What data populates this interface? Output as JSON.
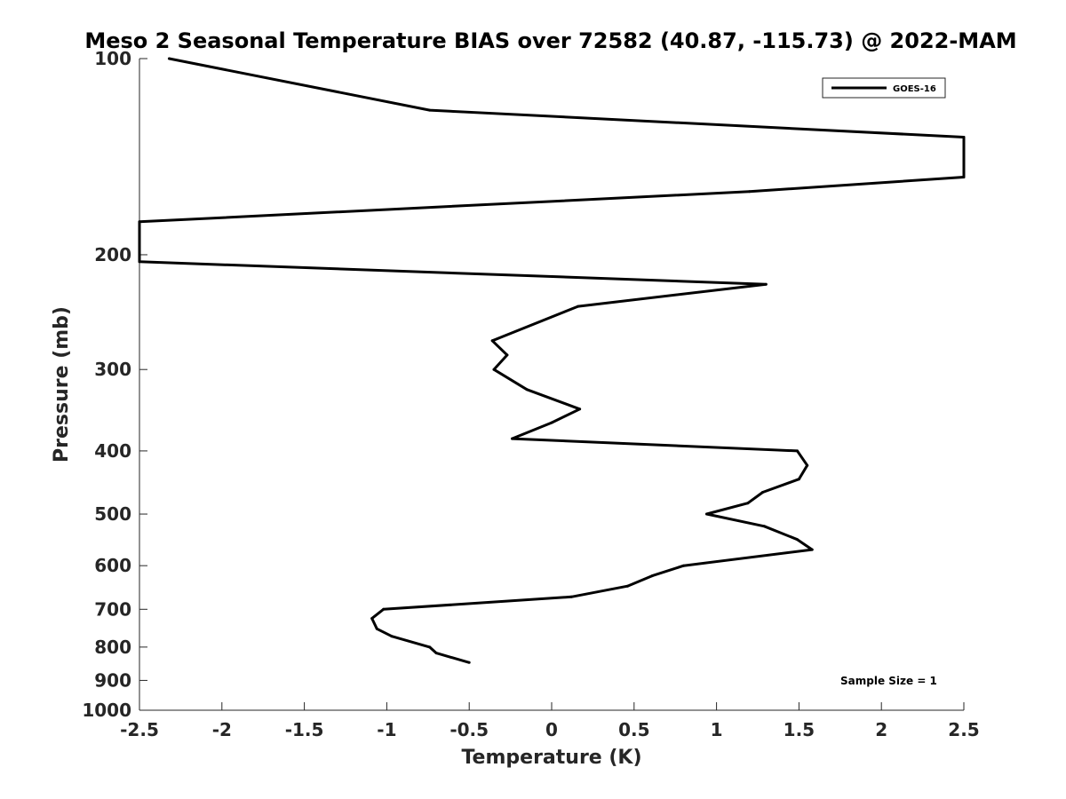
{
  "chart_data": {
    "type": "line",
    "title": "Meso 2 Seasonal Temperature BIAS over 72582 (40.87, -115.73) @ 2022-MAM",
    "xlabel": "Temperature (K)",
    "ylabel": "Pressure (mb)",
    "xlim": [
      -2.5,
      2.5
    ],
    "ylim": [
      100,
      1000
    ],
    "y_scale": "log",
    "y_reversed": true,
    "x_ticks": [
      "-2.5",
      "-2",
      "-1.5",
      "-1",
      "-0.5",
      "0",
      "0.5",
      "1",
      "1.5",
      "2",
      "2.5"
    ],
    "y_ticks": [
      "100",
      "200",
      "300",
      "400",
      "500",
      "600",
      "700",
      "800",
      "900",
      "1000"
    ],
    "legend": {
      "position": "top-right",
      "entries": [
        "GOES-16"
      ]
    },
    "annotation": "Sample Size = 1",
    "series": [
      {
        "name": "GOES-16",
        "color": "#000000",
        "points": [
          {
            "x": -2.32,
            "y": 100
          },
          {
            "x": -0.74,
            "y": 120
          },
          {
            "x": 2.5,
            "y": 132
          },
          {
            "x": 2.5,
            "y": 152
          },
          {
            "x": 1.2,
            "y": 160
          },
          {
            "x": -2.5,
            "y": 178
          },
          {
            "x": -2.5,
            "y": 205
          },
          {
            "x": 1.3,
            "y": 222
          },
          {
            "x": 0.16,
            "y": 240
          },
          {
            "x": -0.36,
            "y": 271
          },
          {
            "x": -0.27,
            "y": 285
          },
          {
            "x": -0.35,
            "y": 300
          },
          {
            "x": -0.15,
            "y": 322
          },
          {
            "x": 0.17,
            "y": 345
          },
          {
            "x": 0.0,
            "y": 362
          },
          {
            "x": -0.24,
            "y": 383
          },
          {
            "x": 1.49,
            "y": 400
          },
          {
            "x": 1.55,
            "y": 421
          },
          {
            "x": 1.5,
            "y": 442
          },
          {
            "x": 1.28,
            "y": 463
          },
          {
            "x": 1.19,
            "y": 481
          },
          {
            "x": 0.94,
            "y": 500
          },
          {
            "x": 1.29,
            "y": 522
          },
          {
            "x": 1.49,
            "y": 547
          },
          {
            "x": 1.58,
            "y": 567
          },
          {
            "x": 0.8,
            "y": 600
          },
          {
            "x": 0.61,
            "y": 622
          },
          {
            "x": 0.46,
            "y": 645
          },
          {
            "x": 0.12,
            "y": 670
          },
          {
            "x": -1.02,
            "y": 700
          },
          {
            "x": -1.09,
            "y": 723
          },
          {
            "x": -1.06,
            "y": 750
          },
          {
            "x": -0.97,
            "y": 770
          },
          {
            "x": -0.74,
            "y": 800
          },
          {
            "x": -0.7,
            "y": 817
          },
          {
            "x": -0.5,
            "y": 845
          }
        ]
      }
    ]
  }
}
